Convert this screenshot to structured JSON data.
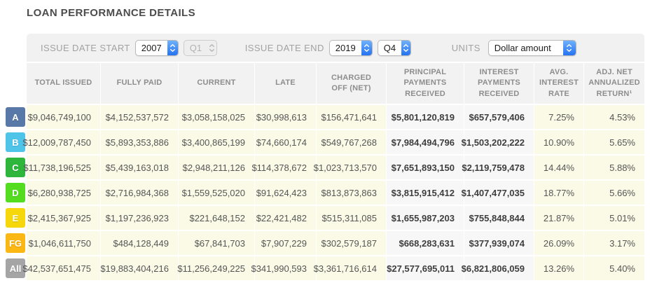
{
  "title": "LOAN PERFORMANCE DETAILS",
  "filters": {
    "issue_date_start": {
      "label": "ISSUE DATE START",
      "year": "2007",
      "quarter": "Q1",
      "quarter_disabled": true
    },
    "issue_date_end": {
      "label": "ISSUE DATE END",
      "year": "2019",
      "quarter": "Q4"
    },
    "units": {
      "label": "UNITS",
      "value": "Dollar amount"
    }
  },
  "table": {
    "columns": [
      "TOTAL ISSUED",
      "FULLY PAID",
      "CURRENT",
      "LATE",
      "CHARGED OFF (NET)",
      "PRINCIPAL PAYMENTS RECEIVED",
      "INTEREST PAYMENTS RECEIVED",
      "AVG. INTEREST RATE",
      "ADJ. NET ANNUALIZED RETURN¹"
    ],
    "rows": [
      {
        "grade": "A",
        "badge_color": "#5878a7",
        "values": [
          "$9,046,749,100",
          "$4,152,537,572",
          "$3,058,158,025",
          "$30,998,613",
          "$156,471,641",
          "$5,801,120,819",
          "$657,579,406",
          "7.25%",
          "4.53%"
        ]
      },
      {
        "grade": "B",
        "badge_color": "#4fc4e9",
        "values": [
          "$12,009,787,450",
          "$5,893,353,886",
          "$3,400,865,199",
          "$74,660,174",
          "$549,767,268",
          "$7,984,494,796",
          "$1,503,202,222",
          "10.90%",
          "5.65%"
        ]
      },
      {
        "grade": "C",
        "badge_color": "#2eb53c",
        "values": [
          "$11,738,196,525",
          "$5,439,163,018",
          "$2,948,211,126",
          "$114,378,672",
          "$1,023,713,570",
          "$7,651,893,150",
          "$2,119,759,478",
          "14.44%",
          "5.88%"
        ]
      },
      {
        "grade": "D",
        "badge_color": "#53dc20",
        "values": [
          "$6,280,938,725",
          "$2,716,984,368",
          "$1,559,525,020",
          "$91,624,423",
          "$813,873,863",
          "$3,815,915,412",
          "$1,407,477,035",
          "18.77%",
          "5.66%"
        ]
      },
      {
        "grade": "E",
        "badge_color": "#f6d70b",
        "values": [
          "$2,415,367,925",
          "$1,197,236,923",
          "$221,648,152",
          "$22,421,482",
          "$515,311,085",
          "$1,655,987,203",
          "$755,848,844",
          "21.87%",
          "5.01%"
        ]
      },
      {
        "grade": "FG",
        "badge_color": "#fbb713",
        "values": [
          "$1,046,611,750",
          "$484,128,449",
          "$67,841,703",
          "$7,907,229",
          "$302,579,187",
          "$668,283,631",
          "$377,939,074",
          "26.09%",
          "3.17%"
        ]
      },
      {
        "grade": "All",
        "badge_color": "#a5a5a5",
        "values": [
          "$42,537,651,475",
          "$19,883,404,216",
          "$11,256,249,225",
          "$341,990,593",
          "$3,361,716,614",
          "$27,577,695,011",
          "$6,821,806,059",
          "13.26%",
          "5.40%"
        ]
      }
    ]
  },
  "colors": {
    "accent_blue": "#2572f2",
    "cell_yellow": "#fafae6",
    "cell_gray": "#f7f7f7",
    "header_gray": "#f2f2f2"
  }
}
